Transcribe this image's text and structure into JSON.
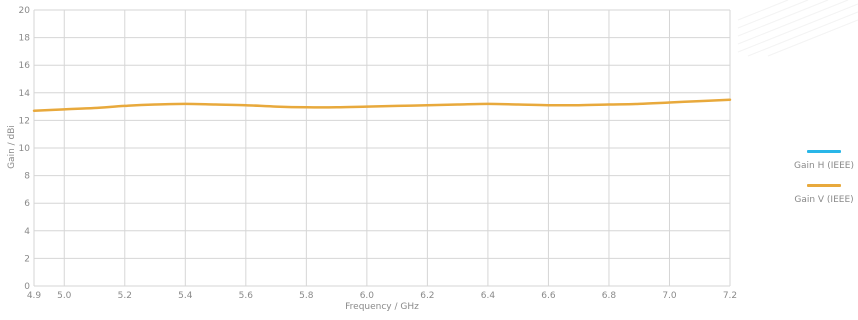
{
  "chart_data": {
    "type": "line",
    "xlabel": "Frequency / GHz",
    "ylabel": "Gain / dBi",
    "xlim": [
      4.9,
      7.2
    ],
    "ylim": [
      0,
      20
    ],
    "x_ticks": [
      "4.9",
      "5.0",
      "5.2",
      "5.4",
      "5.6",
      "5.8",
      "6.0",
      "6.2",
      "6.4",
      "6.6",
      "6.8",
      "7.0",
      "7.2"
    ],
    "y_ticks": [
      "0",
      "2",
      "4",
      "6",
      "8",
      "10",
      "12",
      "14",
      "16",
      "18",
      "20"
    ],
    "grid": true,
    "legend_position": "right",
    "series": [
      {
        "name": "Gain H (IEEE)",
        "color": "#29b6e8",
        "x": [],
        "y": []
      },
      {
        "name": "Gain V (IEEE)",
        "color": "#e8a93c",
        "x": [
          4.9,
          5.0,
          5.1,
          5.2,
          5.3,
          5.4,
          5.5,
          5.6,
          5.7,
          5.8,
          5.9,
          6.0,
          6.1,
          6.2,
          6.3,
          6.4,
          6.5,
          6.6,
          6.7,
          6.8,
          6.9,
          7.0,
          7.1,
          7.2
        ],
        "y": [
          12.7,
          12.8,
          12.9,
          13.05,
          13.15,
          13.2,
          13.15,
          13.1,
          13.0,
          12.95,
          12.95,
          13.0,
          13.05,
          13.1,
          13.15,
          13.2,
          13.15,
          13.1,
          13.1,
          13.15,
          13.2,
          13.3,
          13.4,
          13.5
        ]
      }
    ]
  }
}
